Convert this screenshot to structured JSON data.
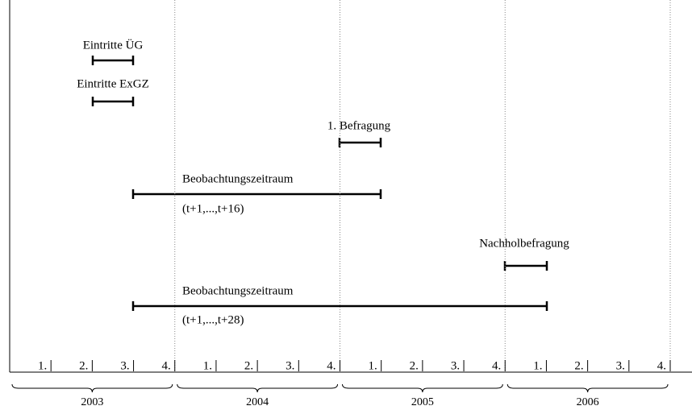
{
  "intervals": [
    {
      "label": "Eintritte ÜG"
    },
    {
      "label": "Eintritte ExGZ"
    },
    {
      "label": "1. Befragung"
    },
    {
      "label": "Beobachtungszeitraum",
      "sublabel": "(t+1,...,t+16)"
    },
    {
      "label": "Nachholbefragung"
    },
    {
      "label": "Beobachtungszeitraum",
      "sublabel": "(t+1,...,t+28)"
    }
  ],
  "quarters": [
    "1.",
    "2.",
    "3.",
    "4."
  ],
  "years": [
    "2003",
    "2004",
    "2005",
    "2006"
  ]
}
